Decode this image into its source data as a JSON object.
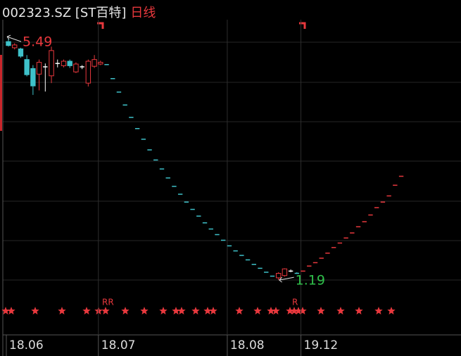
{
  "chart_data": {
    "type": "candlestick",
    "title": "002323.SZ [ST百特]",
    "period": "日线",
    "categories": [
      "18.06",
      null,
      null,
      null,
      null,
      null,
      null,
      null,
      null,
      null,
      null,
      null,
      null,
      null,
      null,
      "18.07",
      null,
      null,
      null,
      null,
      null,
      null,
      null,
      null,
      null,
      null,
      null,
      null,
      null,
      null,
      null,
      null,
      null,
      null,
      null,
      null,
      "18.08",
      null,
      null,
      null,
      null,
      null,
      null,
      null,
      null,
      null,
      null,
      null,
      "19.12",
      null,
      null,
      null,
      null,
      null,
      null,
      null,
      null,
      null,
      null,
      null,
      null,
      null,
      null,
      null,
      null
    ],
    "open": [
      5.44,
      5.33,
      5.31,
      5.12,
      4.96,
      4.86,
      4.99,
      4.83,
      5.05,
      5.01,
      5.09,
      4.9,
      4.99,
      4.7,
      5.0,
      5.04,
      5.03,
      4.78,
      4.54,
      4.31,
      4.09,
      3.89,
      3.7,
      3.51,
      3.33,
      3.17,
      3.01,
      2.86,
      2.72,
      2.58,
      2.45,
      2.33,
      2.21,
      2.1,
      2.0,
      1.9,
      1.8,
      1.71,
      1.63,
      1.55,
      1.47,
      1.4,
      1.33,
      1.26,
      1.23,
      1.27,
      1.35,
      1.32,
      1.35,
      1.44,
      1.5,
      1.58,
      1.67,
      1.77,
      1.85,
      1.94,
      2.03,
      2.14,
      2.23,
      2.35,
      2.48,
      2.58,
      2.69,
      2.88,
      3.04
    ],
    "high": [
      5.49,
      5.41,
      5.33,
      5.2,
      5.02,
      5.12,
      5.05,
      5.35,
      5.12,
      5.12,
      5.12,
      5.07,
      5.02,
      5.12,
      5.2,
      5.1,
      5.03,
      4.78,
      4.54,
      4.31,
      4.09,
      3.89,
      3.7,
      3.51,
      3.33,
      3.17,
      3.01,
      2.86,
      2.72,
      2.58,
      2.45,
      2.33,
      2.21,
      2.1,
      2.0,
      1.9,
      1.8,
      1.71,
      1.63,
      1.55,
      1.47,
      1.4,
      1.33,
      1.26,
      1.33,
      1.4,
      1.38,
      1.33,
      1.35,
      1.44,
      1.5,
      1.58,
      1.67,
      1.77,
      1.85,
      1.94,
      2.03,
      2.14,
      2.23,
      2.35,
      2.48,
      2.58,
      2.69,
      2.88,
      3.04
    ],
    "low": [
      5.35,
      5.3,
      5.15,
      4.82,
      4.49,
      4.57,
      4.55,
      4.7,
      4.98,
      4.98,
      4.97,
      4.88,
      4.95,
      4.64,
      4.97,
      5.02,
      5.03,
      4.78,
      4.54,
      4.31,
      4.09,
      3.89,
      3.7,
      3.51,
      3.33,
      3.17,
      3.01,
      2.86,
      2.72,
      2.58,
      2.45,
      2.33,
      2.21,
      2.1,
      2.0,
      1.9,
      1.8,
      1.71,
      1.63,
      1.55,
      1.47,
      1.4,
      1.33,
      1.26,
      1.19,
      1.25,
      1.33,
      1.3,
      1.35,
      1.44,
      1.5,
      1.58,
      1.67,
      1.77,
      1.85,
      1.94,
      2.03,
      2.14,
      2.23,
      2.35,
      2.48,
      2.58,
      2.69,
      2.88,
      3.04
    ],
    "close": [
      5.37,
      5.38,
      5.18,
      4.85,
      4.65,
      5.07,
      4.99,
      5.28,
      5.05,
      5.09,
      5.01,
      5.04,
      4.99,
      5.09,
      5.12,
      5.07,
      5.03,
      4.78,
      4.54,
      4.31,
      4.09,
      3.89,
      3.7,
      3.51,
      3.33,
      3.17,
      3.01,
      2.86,
      2.72,
      2.58,
      2.45,
      2.33,
      2.21,
      2.1,
      2.0,
      1.9,
      1.8,
      1.71,
      1.63,
      1.55,
      1.47,
      1.4,
      1.33,
      1.26,
      1.31,
      1.39,
      1.35,
      1.31,
      1.35,
      1.44,
      1.5,
      1.58,
      1.67,
      1.77,
      1.85,
      1.94,
      2.03,
      2.14,
      2.23,
      2.35,
      2.48,
      2.58,
      2.69,
      2.88,
      3.04
    ],
    "ylim": [
      0.79,
      5.83
    ],
    "up_color": "#e8383d",
    "down_color": "#3ec1c9",
    "flat_color": "#ffffff",
    "high_label_color": "#e8383d",
    "low_label_color": "#2fbf4a",
    "annotations": [
      "RR",
      "R"
    ]
  }
}
